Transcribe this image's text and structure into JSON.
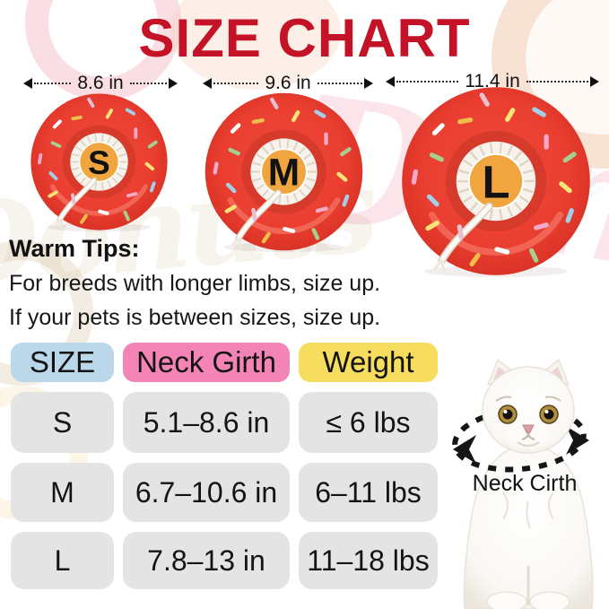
{
  "title": "SIZE CHART",
  "watermark": "Donuts",
  "warm_tips": {
    "heading": "Warm Tips:",
    "line1": "For breeds with longer limbs, size up.",
    "line2": "If your pets is between sizes, size up."
  },
  "cat_caption": "Neck Cirth",
  "chart_data": {
    "type": "table",
    "title": "SIZE CHART",
    "columns": [
      "SIZE",
      "Neck Girth",
      "Weight"
    ],
    "rows": [
      [
        "S",
        "5.1–8.6 in",
        "≤ 6 lbs"
      ],
      [
        "M",
        "6.7–10.6 in",
        "6–11 lbs"
      ],
      [
        "L",
        "7.8–13 in",
        "11–18 lbs"
      ]
    ],
    "donut_diameters": [
      {
        "size": "S",
        "outer_diameter": "8.6 in"
      },
      {
        "size": "M",
        "outer_diameter": "9.6 in"
      },
      {
        "size": "L",
        "outer_diameter": "11.4 in"
      }
    ]
  },
  "colors": {
    "title": "#C41226",
    "header_size": "#BAD8E9",
    "header_neck_girth": "#F584B6",
    "header_weight": "#F6DD60",
    "cell_bg": "#E4E4E4",
    "donut_red": "#EA3E30",
    "donut_center_orange": "#F1A53E"
  }
}
